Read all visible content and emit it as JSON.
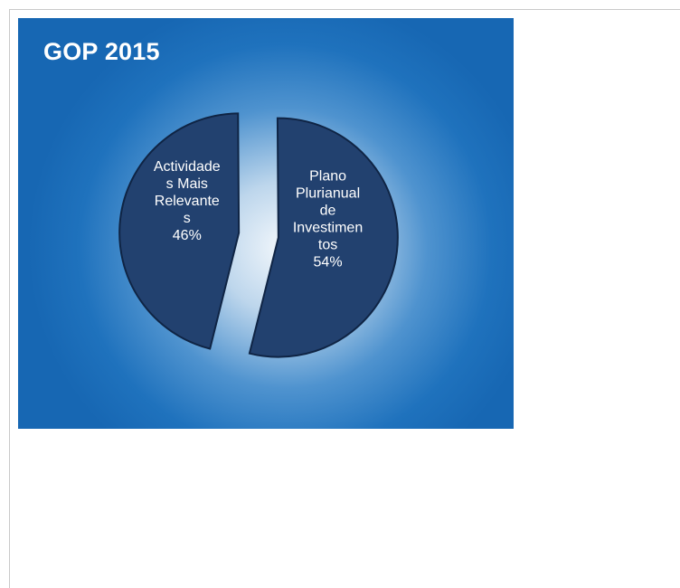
{
  "chart_data": {
    "type": "pie",
    "title": "GOP 2015",
    "slices": [
      {
        "label_lines": [
          "Actividade",
          "s Mais",
          "Relevante",
          "s"
        ],
        "value": 46,
        "value_label": "46%",
        "color": "#22416f"
      },
      {
        "label_lines": [
          "Plano",
          "Plurianual",
          "de",
          "Investimen",
          "tos"
        ],
        "value": 54,
        "value_label": "54%",
        "color": "#22416f"
      }
    ],
    "legend": "none",
    "exploded": true
  }
}
